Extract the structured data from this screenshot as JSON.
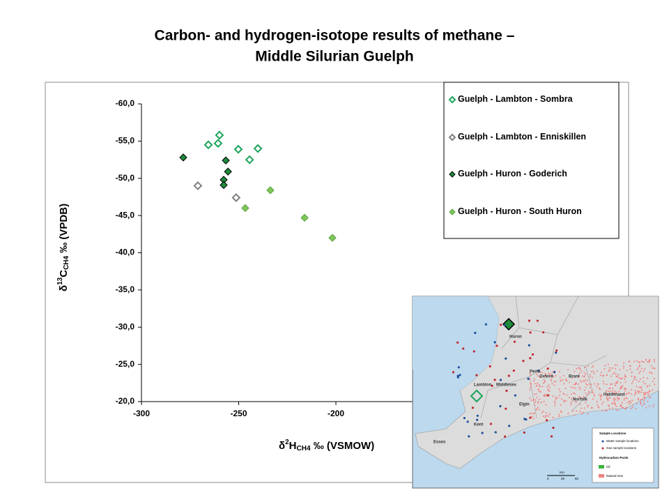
{
  "chart_data": {
    "type": "scatter",
    "title": [
      "Carbon- and hydrogen-isotope results of methane –",
      "Middle Silurian Guelph"
    ],
    "xlabel": [
      "δ",
      "2",
      "H",
      "CH4",
      " ‰ (VSMOW)"
    ],
    "ylabel": [
      "δ",
      "13",
      "C",
      "CH4",
      " ‰ (VPDB)"
    ],
    "xlim": [
      -300,
      -150
    ],
    "xticks": [
      -300,
      -250,
      -200
    ],
    "ylim": [
      -20,
      -60
    ],
    "yticks": [
      {
        "value": -60,
        "label": "-60,0"
      },
      {
        "value": -55,
        "label": "-55,0"
      },
      {
        "value": -50,
        "label": "-50,0"
      },
      {
        "value": -45,
        "label": "-45,0"
      },
      {
        "value": -40,
        "label": "-40,0"
      },
      {
        "value": -35,
        "label": "-35,0"
      },
      {
        "value": -30,
        "label": "-30,0"
      },
      {
        "value": -25,
        "label": "-25,0"
      },
      {
        "value": -20,
        "label": "-20,0"
      }
    ],
    "series": [
      {
        "name": "Guelph - Lambton - Sombra",
        "color": "#1aa35a",
        "filled": false,
        "x": [
          -265.6,
          -260.6,
          -259.9,
          -250.2,
          -244.4,
          -240.1
        ],
        "values": [
          -54.5,
          -54.7,
          -55.8,
          -53.9,
          -52.5,
          -54.0
        ]
      },
      {
        "name": "Guelph - Lambton - Enniskillen",
        "color": "#808080",
        "filled": false,
        "x": [
          -271.0,
          -251.3
        ],
        "values": [
          -49.0,
          -47.4
        ]
      },
      {
        "name": "Guelph - Huron - Goderich",
        "color": "#1e8a3c",
        "filled": true,
        "x": [
          -278.5,
          -256.6,
          -255.5,
          -257.7,
          -257.7
        ],
        "values": [
          -52.8,
          -52.4,
          -50.9,
          -49.8,
          -49.1
        ]
      },
      {
        "name": "Guelph - Huron - South Huron",
        "color": "#7dc85a",
        "filled": true,
        "x": [
          -233.7,
          -246.6,
          -216.1,
          -201.8
        ],
        "values": [
          -48.4,
          -46.0,
          -44.7,
          -42.0
        ]
      }
    ]
  },
  "map": {
    "labels": [
      "Huron",
      "Perth",
      "Oxford",
      "Brant",
      "Lambton",
      "Middlesex",
      "Haldimand",
      "Norfolk",
      "Elgin",
      "Kent",
      "Essex"
    ],
    "legend": [
      "Sample Locations",
      "Water sample locations",
      "Gas sample locations",
      "Hydrocarbon Pools",
      "Oil",
      "Natural Gas"
    ],
    "scale": [
      "Km",
      "0",
      "25",
      "50"
    ]
  }
}
